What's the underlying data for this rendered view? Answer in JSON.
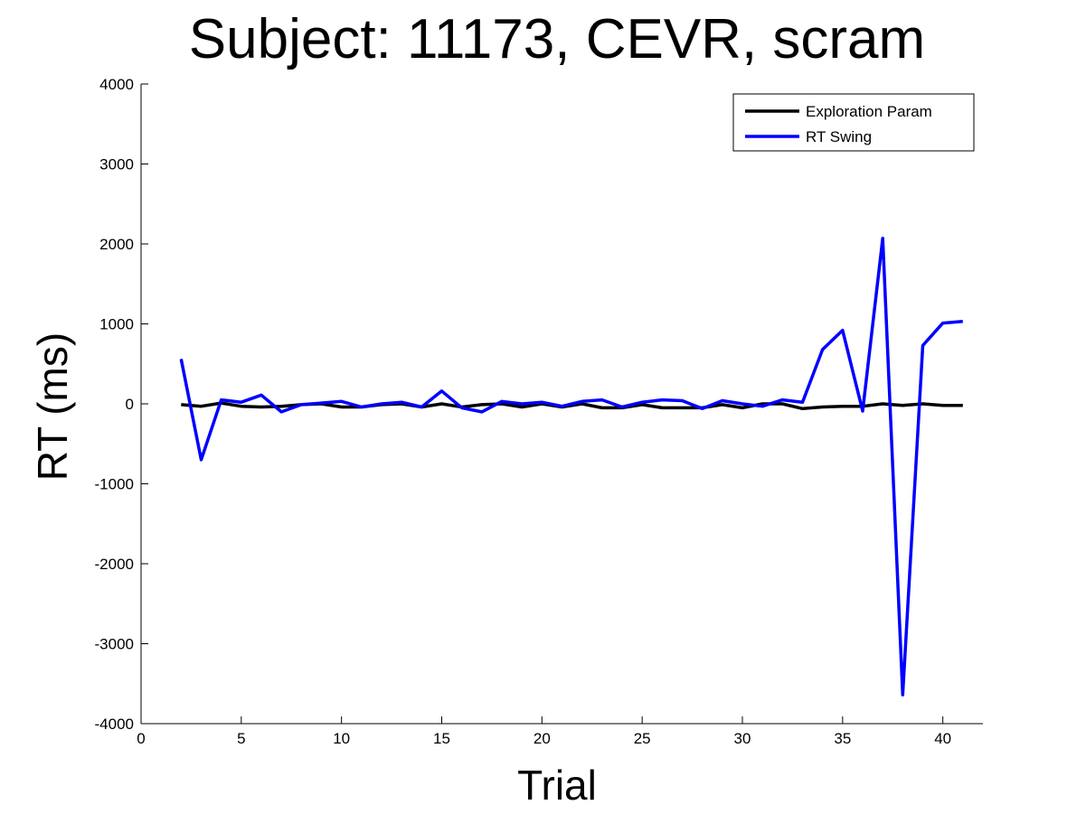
{
  "chart_data": {
    "type": "line",
    "title": "Subject: 11173, CEVR, scram",
    "xlabel": "Trial",
    "ylabel": "RT (ms)",
    "xlim": [
      0,
      42
    ],
    "ylim": [
      -4000,
      4000
    ],
    "xticks": [
      0,
      5,
      10,
      15,
      20,
      25,
      30,
      35,
      40
    ],
    "yticks": [
      -4000,
      -3000,
      -2000,
      -1000,
      0,
      1000,
      2000,
      3000,
      4000
    ],
    "grid": false,
    "legend_position": "top-right",
    "x": [
      2,
      3,
      4,
      5,
      6,
      7,
      8,
      9,
      10,
      11,
      12,
      13,
      14,
      15,
      16,
      17,
      18,
      19,
      20,
      21,
      22,
      23,
      24,
      25,
      26,
      27,
      28,
      29,
      30,
      31,
      32,
      33,
      34,
      35,
      36,
      37,
      38,
      39,
      40,
      41
    ],
    "series": [
      {
        "name": "Exploration Param",
        "color": "#000000",
        "values": [
          -10,
          -30,
          10,
          -30,
          -40,
          -30,
          -10,
          0,
          -40,
          -40,
          -10,
          0,
          -40,
          0,
          -40,
          -10,
          0,
          -40,
          0,
          -40,
          0,
          -50,
          -50,
          -10,
          -50,
          -50,
          -50,
          -10,
          -50,
          0,
          0,
          -60,
          -40,
          -30,
          -30,
          0,
          -20,
          0,
          -20,
          -20
        ]
      },
      {
        "name": "RT Swing",
        "color": "#0000ff",
        "values": [
          560,
          -700,
          50,
          20,
          110,
          -100,
          -10,
          10,
          30,
          -40,
          0,
          20,
          -40,
          160,
          -50,
          -100,
          30,
          0,
          20,
          -30,
          30,
          50,
          -40,
          20,
          50,
          40,
          -60,
          40,
          0,
          -30,
          50,
          20,
          680,
          920,
          -90,
          2070,
          -3640,
          730,
          1010,
          1030
        ]
      }
    ]
  }
}
